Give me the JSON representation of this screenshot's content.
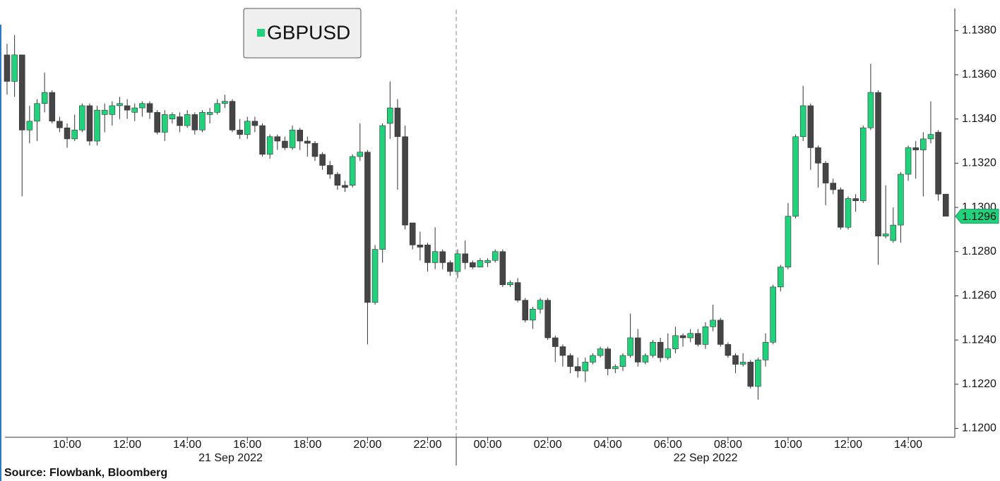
{
  "chart_data": {
    "type": "candlestick",
    "source": "Source: Flowbank, Bloomberg",
    "date_labels": [
      "21 Sep 2022",
      "22 Sep 2022"
    ],
    "x": [
      8,
      8.25,
      8.5,
      8.75,
      9,
      9.25,
      9.5,
      9.75,
      10,
      10.25,
      10.5,
      10.75,
      11,
      11.25,
      11.5,
      11.75,
      12,
      12.25,
      12.5,
      12.75,
      13,
      13.25,
      13.5,
      13.75,
      14,
      14.25,
      14.5,
      14.75,
      15,
      15.25,
      15.5,
      15.75,
      16,
      16.25,
      16.5,
      16.75,
      17,
      17.25,
      17.5,
      17.75,
      18,
      18.25,
      18.5,
      18.75,
      19,
      19.25,
      19.5,
      19.75,
      20,
      20.25,
      20.5,
      20.75,
      21,
      21.25,
      21.5,
      21.75,
      22,
      22.25,
      22.5,
      22.75,
      23,
      23.25,
      23.5,
      23.75,
      24,
      24.25,
      24.5,
      24.75,
      25,
      25.25,
      25.5,
      25.75,
      26,
      26.25,
      26.5,
      26.75,
      27,
      27.25,
      27.5,
      27.75,
      28,
      28.25,
      28.5,
      28.75,
      29,
      29.25,
      29.5,
      29.75,
      30,
      30.25,
      30.5,
      30.75,
      31,
      31.25,
      31.5,
      31.75,
      32,
      32.25,
      32.5,
      32.75,
      33,
      33.25,
      33.5,
      33.75,
      34,
      34.25,
      34.5,
      34.75,
      35,
      35.25,
      35.5,
      35.75,
      36,
      36.25,
      36.5,
      36.75,
      37,
      37.25,
      37.5,
      37.75,
      38,
      38.25,
      38.5,
      38.75,
      39,
      39.25
    ],
    "series": [
      {
        "name": "GBPUSD",
        "color": "#22d17c",
        "down_color": "#454545",
        "open": [
          1.1369,
          1.1357,
          1.1369,
          1.1335,
          1.1339,
          1.1347,
          1.1352,
          1.1339,
          1.1336,
          1.1331,
          1.1335,
          1.1346,
          1.133,
          1.1342,
          1.1342,
          1.1346,
          1.1346,
          1.1343,
          1.1345,
          1.1347,
          1.1343,
          1.1334,
          1.134,
          1.1341,
          1.1337,
          1.1342,
          1.1335,
          1.1342,
          1.1343,
          1.1347,
          1.1348,
          1.1335,
          1.1333,
          1.1339,
          1.1337,
          1.1324,
          1.1332,
          1.133,
          1.1327,
          1.1335,
          1.133,
          1.1329,
          1.1324,
          1.1319,
          1.1315,
          1.131,
          1.131,
          1.1323,
          1.1325,
          1.1257,
          1.1281,
          1.1338,
          1.1345,
          1.1332,
          1.1293,
          1.1283,
          1.1283,
          1.1275,
          1.128,
          1.1275,
          1.1271,
          1.1279,
          1.1275,
          1.1273,
          1.1275,
          1.1276,
          1.128,
          1.1265,
          1.1266,
          1.1258,
          1.1249,
          1.1254,
          1.1258,
          1.1241,
          1.1237,
          1.1233,
          1.1228,
          1.1226,
          1.123,
          1.1233,
          1.1236,
          1.1227,
          1.1228,
          1.1233,
          1.1241,
          1.123,
          1.1233,
          1.1239,
          1.1232,
          1.1236,
          1.1242,
          1.1241,
          1.1243,
          1.1238,
          1.1246,
          1.1249,
          1.1238,
          1.1233,
          1.1229,
          1.123,
          1.1219,
          1.1231,
          1.1239,
          1.1264,
          1.1273,
          1.1296,
          1.1332,
          1.1346,
          1.1327,
          1.132,
          1.1311,
          1.1308,
          1.1291,
          1.1304,
          1.1303,
          1.1336,
          1.1352,
          1.1287,
          1.1285,
          1.1292,
          1.1315,
          1.1327,
          1.1326,
          1.1331,
          1.1334,
          1.1306
        ],
        "high": [
          1.1374,
          1.1378,
          1.1369,
          1.1346,
          1.1349,
          1.1361,
          1.1353,
          1.1341,
          1.1338,
          1.1342,
          1.1347,
          1.1347,
          1.1346,
          1.1347,
          1.1348,
          1.135,
          1.1349,
          1.1347,
          1.1348,
          1.1348,
          1.1344,
          1.1344,
          1.1343,
          1.1343,
          1.1344,
          1.1343,
          1.1344,
          1.1345,
          1.1349,
          1.1351,
          1.1349,
          1.134,
          1.1341,
          1.1341,
          1.1338,
          1.1333,
          1.1333,
          1.1332,
          1.1337,
          1.1336,
          1.1332,
          1.133,
          1.1325,
          1.1321,
          1.1316,
          1.1312,
          1.1324,
          1.1338,
          1.1326,
          1.1283,
          1.1338,
          1.1357,
          1.1349,
          1.1337,
          1.1293,
          1.1289,
          1.1284,
          1.1291,
          1.1281,
          1.1276,
          1.1281,
          1.1285,
          1.1276,
          1.1277,
          1.1277,
          1.1281,
          1.1281,
          1.1267,
          1.1268,
          1.1259,
          1.1255,
          1.1259,
          1.1259,
          1.1242,
          1.1238,
          1.1234,
          1.1232,
          1.1232,
          1.1234,
          1.1237,
          1.1237,
          1.1229,
          1.1234,
          1.1252,
          1.1245,
          1.1234,
          1.124,
          1.1241,
          1.1243,
          1.1246,
          1.1243,
          1.1245,
          1.1245,
          1.1248,
          1.1256,
          1.125,
          1.1239,
          1.1234,
          1.1234,
          1.1231,
          1.1232,
          1.1243,
          1.1265,
          1.1274,
          1.1302,
          1.1333,
          1.1355,
          1.1347,
          1.1328,
          1.1321,
          1.1313,
          1.1309,
          1.1305,
          1.1306,
          1.1337,
          1.1365,
          1.1353,
          1.131,
          1.13,
          1.1316,
          1.1328,
          1.133,
          1.1334,
          1.1348,
          1.1335,
          1.1306
        ],
        "low": [
          1.1351,
          1.135,
          1.1305,
          1.1329,
          1.133,
          1.1343,
          1.1338,
          1.1334,
          1.1327,
          1.133,
          1.1334,
          1.1328,
          1.1328,
          1.1334,
          1.1337,
          1.134,
          1.134,
          1.1339,
          1.1341,
          1.134,
          1.1333,
          1.133,
          1.1338,
          1.1334,
          1.1336,
          1.1333,
          1.1334,
          1.1338,
          1.1342,
          1.1345,
          1.1334,
          1.1331,
          1.1331,
          1.1334,
          1.1323,
          1.1322,
          1.1326,
          1.1326,
          1.1326,
          1.1326,
          1.1323,
          1.1321,
          1.1317,
          1.1313,
          1.1308,
          1.1307,
          1.1309,
          1.1321,
          1.1238,
          1.1256,
          1.1275,
          1.1331,
          1.1308,
          1.129,
          1.1281,
          1.1276,
          1.1271,
          1.1272,
          1.1272,
          1.1269,
          1.1268,
          1.1272,
          1.1272,
          1.1273,
          1.1273,
          1.1275,
          1.1264,
          1.1264,
          1.1257,
          1.1248,
          1.1245,
          1.1252,
          1.124,
          1.123,
          1.1228,
          1.1225,
          1.1223,
          1.1221,
          1.1229,
          1.1232,
          1.1224,
          1.1225,
          1.1226,
          1.1232,
          1.1228,
          1.1229,
          1.1232,
          1.123,
          1.1231,
          1.1234,
          1.1237,
          1.1239,
          1.1237,
          1.1236,
          1.1244,
          1.1237,
          1.1232,
          1.1225,
          1.1228,
          1.1218,
          1.1213,
          1.1228,
          1.1238,
          1.1262,
          1.1272,
          1.1295,
          1.133,
          1.1317,
          1.1309,
          1.1301,
          1.1306,
          1.129,
          1.129,
          1.1298,
          1.1302,
          1.1335,
          1.1274,
          1.1286,
          1.1284,
          1.1284,
          1.1312,
          1.1313,
          1.1305,
          1.1329,
          1.1303,
          1.1296
        ],
        "close": [
          1.1357,
          1.1369,
          1.1335,
          1.1339,
          1.1347,
          1.1352,
          1.1339,
          1.1336,
          1.1331,
          1.1335,
          1.1346,
          1.133,
          1.1344,
          1.1344,
          1.1346,
          1.1347,
          1.1344,
          1.1345,
          1.1347,
          1.1343,
          1.1334,
          1.1342,
          1.1342,
          1.1337,
          1.1342,
          1.1335,
          1.1343,
          1.1343,
          1.1347,
          1.1348,
          1.1335,
          1.1333,
          1.1339,
          1.1337,
          1.1324,
          1.1332,
          1.133,
          1.1327,
          1.1335,
          1.133,
          1.1329,
          1.1323,
          1.1319,
          1.1315,
          1.131,
          1.1309,
          1.1323,
          1.1325,
          1.1257,
          1.1281,
          1.1337,
          1.1345,
          1.1332,
          1.1292,
          1.1283,
          1.1282,
          1.1275,
          1.128,
          1.1275,
          1.1271,
          1.1279,
          1.1275,
          1.1273,
          1.1276,
          1.1276,
          1.128,
          1.1265,
          1.1266,
          1.1258,
          1.1249,
          1.1254,
          1.1258,
          1.1241,
          1.1237,
          1.1233,
          1.1228,
          1.1226,
          1.123,
          1.1233,
          1.1236,
          1.1227,
          1.1228,
          1.1233,
          1.1241,
          1.123,
          1.1233,
          1.1239,
          1.1232,
          1.1236,
          1.1242,
          1.1241,
          1.1243,
          1.1238,
          1.1246,
          1.1249,
          1.1238,
          1.1233,
          1.1229,
          1.123,
          1.1219,
          1.1231,
          1.1239,
          1.1264,
          1.1273,
          1.1296,
          1.1332,
          1.1346,
          1.1327,
          1.132,
          1.1311,
          1.1308,
          1.1291,
          1.1304,
          1.1303,
          1.1336,
          1.1352,
          1.1287,
          1.1288,
          1.1292,
          1.1315,
          1.1327,
          1.1326,
          1.1331,
          1.1333,
          1.1306,
          1.1296
        ]
      }
    ],
    "last_price": 1.1296,
    "xlim": [
      7.93,
      39.55
    ],
    "xticks": [
      {
        "value": 10,
        "label": "10:00"
      },
      {
        "value": 12,
        "label": "12:00"
      },
      {
        "value": 14,
        "label": "14:00"
      },
      {
        "value": 16,
        "label": "16:00"
      },
      {
        "value": 18,
        "label": "18:00"
      },
      {
        "value": 20,
        "label": "20:00"
      },
      {
        "value": 22,
        "label": "22:00"
      },
      {
        "value": 24,
        "label": "00:00"
      },
      {
        "value": 26,
        "label": "02:00"
      },
      {
        "value": 28,
        "label": "04:00"
      },
      {
        "value": 30,
        "label": "06:00"
      },
      {
        "value": 32,
        "label": "08:00"
      },
      {
        "value": 34,
        "label": "10:00"
      },
      {
        "value": 36,
        "label": "12:00"
      },
      {
        "value": 38,
        "label": "14:00"
      }
    ],
    "ylim": [
      1.1196,
      1.139
    ],
    "yticks": [
      {
        "value": 1.12,
        "label": "1.1200"
      },
      {
        "value": 1.122,
        "label": "1.1220"
      },
      {
        "value": 1.124,
        "label": "1.1240"
      },
      {
        "value": 1.126,
        "label": "1.1260"
      },
      {
        "value": 1.128,
        "label": "1.1280"
      },
      {
        "value": 1.13,
        "label": "1.1300"
      },
      {
        "value": 1.132,
        "label": "1.1320"
      },
      {
        "value": 1.134,
        "label": "1.1340"
      },
      {
        "value": 1.136,
        "label": "1.1360"
      },
      {
        "value": 1.138,
        "label": "1.1380"
      }
    ],
    "y_axis_side": "right",
    "legend": "top-left",
    "grid": false
  }
}
